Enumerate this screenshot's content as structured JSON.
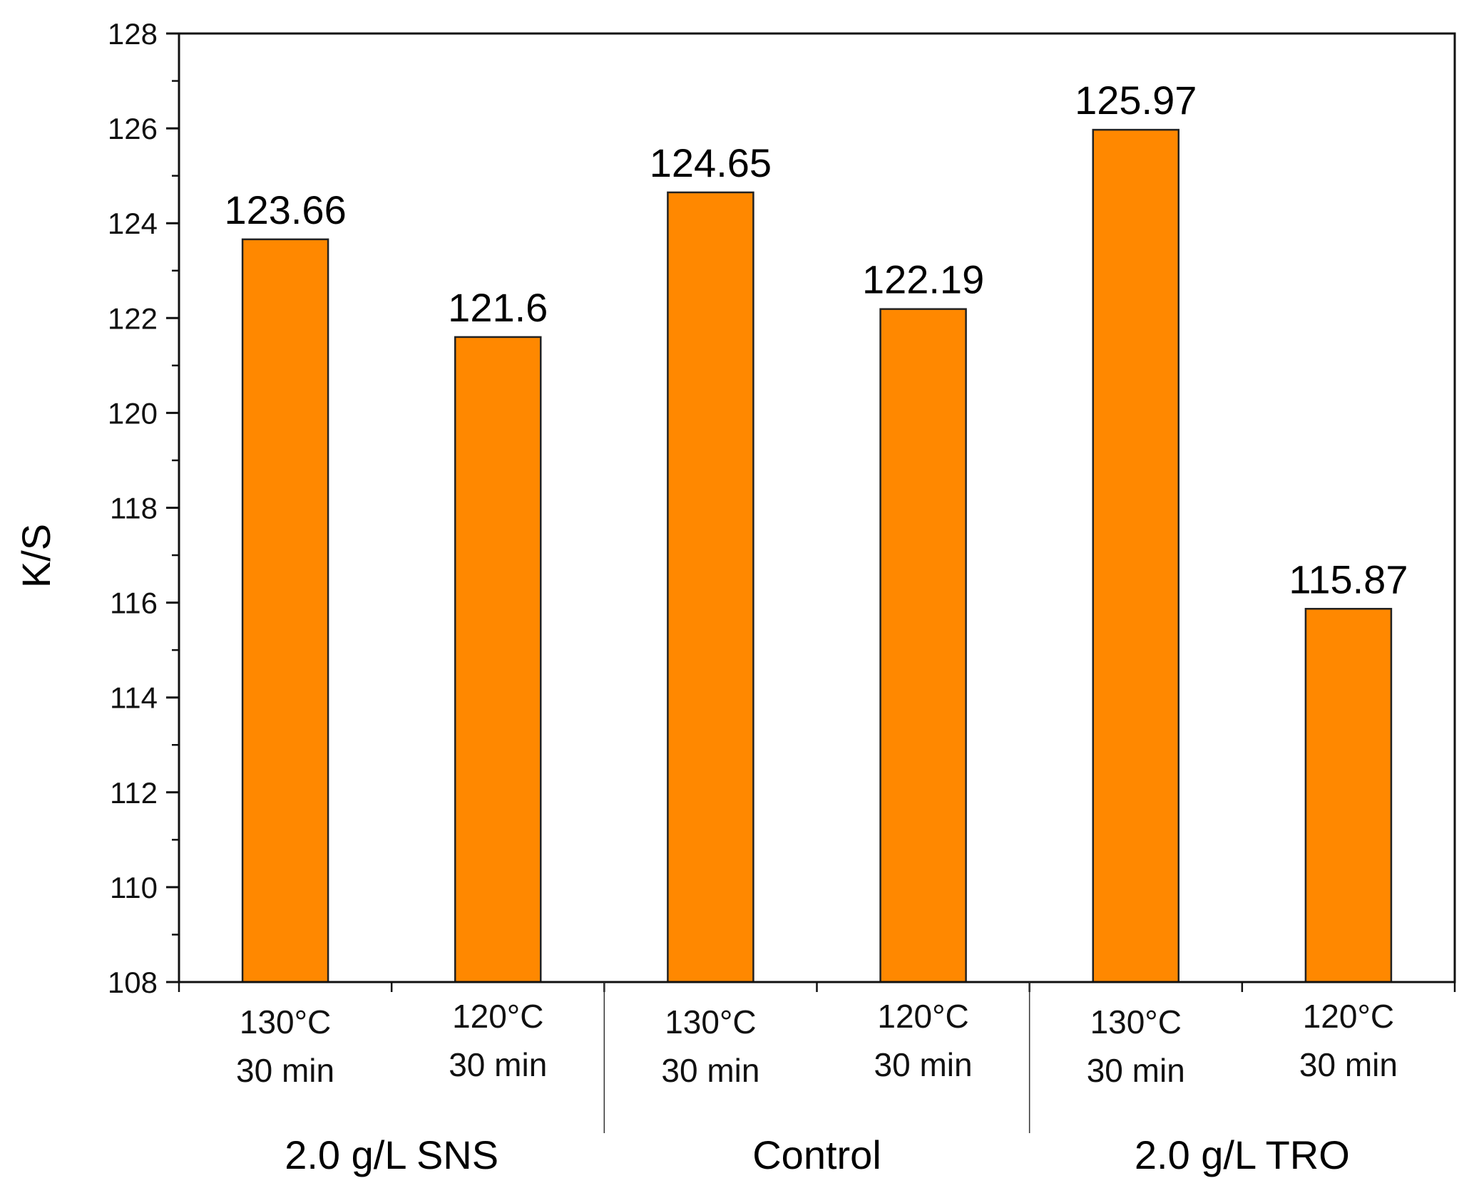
{
  "chart_data": {
    "type": "bar",
    "title": "",
    "xlabel": "",
    "ylabel": "K/S",
    "ylim": [
      108,
      128
    ],
    "yticks": [
      108,
      110,
      112,
      114,
      116,
      118,
      120,
      122,
      124,
      126,
      128
    ],
    "grid": false,
    "legend": "none",
    "bar_color": "#FF8800",
    "bar_edge_color": "#222222",
    "categories": [
      {
        "line1": "130°C",
        "line2": "30 min"
      },
      {
        "line1": "120°C",
        "line2": "30 min"
      },
      {
        "line1": "130°C",
        "line2": "30 min"
      },
      {
        "line1": "120°C",
        "line2": "30 min"
      },
      {
        "line1": "130°C",
        "line2": "30 min"
      },
      {
        "line1": "120°C",
        "line2": "30 min"
      }
    ],
    "values": [
      123.66,
      121.6,
      124.65,
      122.19,
      125.97,
      115.87
    ],
    "data_labels": [
      "123.66",
      "121.6",
      "124.65",
      "122.19",
      "125.97",
      "115.87"
    ],
    "groups": [
      {
        "label": "2.0 g/L SNS",
        "start": 0,
        "end": 1
      },
      {
        "label": "Control",
        "start": 2,
        "end": 3
      },
      {
        "label": "2.0 g/L TRO",
        "start": 4,
        "end": 5
      }
    ]
  }
}
